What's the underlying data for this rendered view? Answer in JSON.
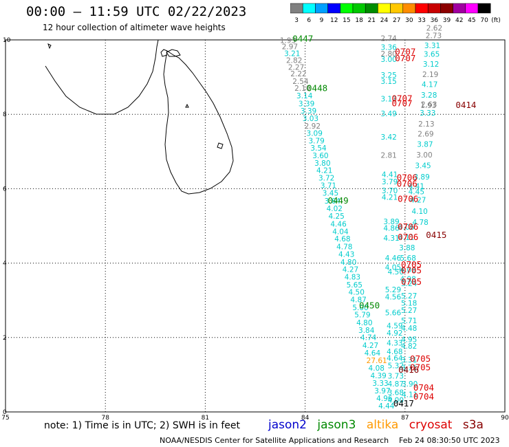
{
  "header": {
    "title": "00:00 – 11:59 UTC 02/22/2023",
    "subtitle": "12 hour collection of altimeter wave heights"
  },
  "color_scale": {
    "unit_label": "(ft)",
    "bins": [
      {
        "label": "3",
        "color": "#808080"
      },
      {
        "label": "6",
        "color": "#00ffff"
      },
      {
        "label": "9",
        "color": "#00a0ff"
      },
      {
        "label": "12",
        "color": "#0000ff"
      },
      {
        "label": "15",
        "color": "#00ff00"
      },
      {
        "label": "18",
        "color": "#00c800"
      },
      {
        "label": "21",
        "color": "#008c00"
      },
      {
        "label": "24",
        "color": "#ffff00"
      },
      {
        "label": "27",
        "color": "#ffc800"
      },
      {
        "label": "30",
        "color": "#ff8c00"
      },
      {
        "label": "33",
        "color": "#ff0000"
      },
      {
        "label": "36",
        "color": "#c80000"
      },
      {
        "label": "39",
        "color": "#8c0000"
      },
      {
        "label": "42",
        "color": "#a000a0"
      },
      {
        "label": "45",
        "color": "#ff00ff"
      },
      {
        "label": "70",
        "color": "#000000"
      }
    ]
  },
  "chart_data": {
    "type": "scatter",
    "x_ticks": [
      "75",
      "78",
      "81",
      "84",
      "87",
      "90"
    ],
    "y_ticks": [
      "0",
      "2",
      "4",
      "6",
      "8",
      "10"
    ],
    "xlim": [
      75,
      90
    ],
    "ylim": [
      0,
      10
    ],
    "grid": true,
    "points": [
      {
        "lon": 83.24,
        "lat": 9.92,
        "t": "1.93",
        "c": "#808080"
      },
      {
        "lon": 83.3,
        "lat": 9.75,
        "t": "2.97",
        "c": "#808080"
      },
      {
        "lon": 83.37,
        "lat": 9.57,
        "t": "3.21",
        "c": "#00cccc"
      },
      {
        "lon": 83.43,
        "lat": 9.38,
        "t": "2.82",
        "c": "#808080"
      },
      {
        "lon": 83.49,
        "lat": 9.2,
        "t": "2.27",
        "c": "#808080"
      },
      {
        "lon": 83.56,
        "lat": 9.02,
        "t": "2.22",
        "c": "#808080"
      },
      {
        "lon": 83.62,
        "lat": 8.82,
        "t": "2.54",
        "c": "#808080"
      },
      {
        "lon": 83.68,
        "lat": 8.63,
        "t": "2.10",
        "c": "#808080"
      },
      {
        "lon": 83.74,
        "lat": 8.43,
        "t": "3.14",
        "c": "#00cccc"
      },
      {
        "lon": 83.8,
        "lat": 8.22,
        "t": "3.39",
        "c": "#00cccc"
      },
      {
        "lon": 83.86,
        "lat": 8.02,
        "t": "3.39",
        "c": "#00cccc"
      },
      {
        "lon": 83.92,
        "lat": 7.82,
        "t": "3.03",
        "c": "#00cccc"
      },
      {
        "lon": 83.98,
        "lat": 7.62,
        "t": "2.92",
        "c": "#808080"
      },
      {
        "lon": 84.04,
        "lat": 7.42,
        "t": "3.09",
        "c": "#00cccc"
      },
      {
        "lon": 84.1,
        "lat": 7.22,
        "t": "3.79",
        "c": "#00cccc"
      },
      {
        "lon": 84.16,
        "lat": 7.02,
        "t": "3.54",
        "c": "#00cccc"
      },
      {
        "lon": 84.22,
        "lat": 6.82,
        "t": "3.60",
        "c": "#00cccc"
      },
      {
        "lon": 84.28,
        "lat": 6.62,
        "t": "3.80",
        "c": "#00cccc"
      },
      {
        "lon": 84.34,
        "lat": 6.42,
        "t": "4.21",
        "c": "#00cccc"
      },
      {
        "lon": 84.4,
        "lat": 6.22,
        "t": "3.72",
        "c": "#00cccc"
      },
      {
        "lon": 84.46,
        "lat": 6.02,
        "t": "3.71",
        "c": "#00cccc"
      },
      {
        "lon": 84.52,
        "lat": 5.81,
        "t": "3.45",
        "c": "#00cccc"
      },
      {
        "lon": 84.58,
        "lat": 5.6,
        "t": "3.64",
        "c": "#00cccc"
      },
      {
        "lon": 84.64,
        "lat": 5.4,
        "t": "4.02",
        "c": "#00cccc"
      },
      {
        "lon": 84.7,
        "lat": 5.19,
        "t": "4.25",
        "c": "#00cccc"
      },
      {
        "lon": 84.76,
        "lat": 4.98,
        "t": "4.46",
        "c": "#00cccc"
      },
      {
        "lon": 84.82,
        "lat": 4.78,
        "t": "4.04",
        "c": "#00cccc"
      },
      {
        "lon": 84.88,
        "lat": 4.58,
        "t": "4.68",
        "c": "#00cccc"
      },
      {
        "lon": 84.94,
        "lat": 4.37,
        "t": "4.78",
        "c": "#00cccc"
      },
      {
        "lon": 85.0,
        "lat": 4.17,
        "t": "4.43",
        "c": "#00cccc"
      },
      {
        "lon": 85.06,
        "lat": 3.96,
        "t": "4.80",
        "c": "#00cccc"
      },
      {
        "lon": 85.12,
        "lat": 3.76,
        "t": "4.27",
        "c": "#00cccc"
      },
      {
        "lon": 85.18,
        "lat": 3.56,
        "t": "4.83",
        "c": "#00cccc"
      },
      {
        "lon": 85.24,
        "lat": 3.35,
        "t": "5.65",
        "c": "#00cccc"
      },
      {
        "lon": 85.3,
        "lat": 3.15,
        "t": "4.50",
        "c": "#00cccc"
      },
      {
        "lon": 85.36,
        "lat": 2.95,
        "t": "4.87",
        "c": "#00cccc"
      },
      {
        "lon": 85.42,
        "lat": 2.74,
        "t": "5.00",
        "c": "#00cccc"
      },
      {
        "lon": 85.48,
        "lat": 2.54,
        "t": "5.79",
        "c": "#00cccc"
      },
      {
        "lon": 85.54,
        "lat": 2.33,
        "t": "4.80",
        "c": "#00cccc"
      },
      {
        "lon": 85.6,
        "lat": 2.13,
        "t": "3.84",
        "c": "#00cccc"
      },
      {
        "lon": 85.66,
        "lat": 1.93,
        "t": "4.74",
        "c": "#00cccc"
      },
      {
        "lon": 85.72,
        "lat": 1.72,
        "t": "4.27",
        "c": "#00cccc"
      },
      {
        "lon": 85.78,
        "lat": 1.52,
        "t": "4.64",
        "c": "#00cccc"
      },
      {
        "lon": 85.84,
        "lat": 1.31,
        "t": "27.61",
        "c": "#ff9900"
      },
      {
        "lon": 85.9,
        "lat": 1.11,
        "t": "4.08",
        "c": "#00cccc"
      },
      {
        "lon": 85.96,
        "lat": 0.91,
        "t": "4.39",
        "c": "#00cccc"
      },
      {
        "lon": 86.02,
        "lat": 0.7,
        "t": "3.33",
        "c": "#00cccc"
      },
      {
        "lon": 86.08,
        "lat": 0.5,
        "t": "3.97",
        "c": "#00cccc"
      },
      {
        "lon": 86.14,
        "lat": 0.3,
        "t": "4.96",
        "c": "#00cccc"
      },
      {
        "lon": 86.2,
        "lat": 0.09,
        "t": "4.44",
        "c": "#00cccc"
      },
      {
        "lon": 86.27,
        "lat": 9.97,
        "t": "2.74",
        "c": "#808080"
      },
      {
        "lon": 86.27,
        "lat": 9.73,
        "t": "3.36",
        "c": "#00cccc"
      },
      {
        "lon": 86.27,
        "lat": 9.56,
        "t": "2.80",
        "c": "#808080"
      },
      {
        "lon": 86.27,
        "lat": 9.41,
        "t": "3.00",
        "c": "#00cccc"
      },
      {
        "lon": 86.27,
        "lat": 8.98,
        "t": "3.25",
        "c": "#00cccc"
      },
      {
        "lon": 86.27,
        "lat": 8.82,
        "t": "3.15",
        "c": "#00cccc"
      },
      {
        "lon": 86.27,
        "lat": 8.35,
        "t": "3.12",
        "c": "#00cccc"
      },
      {
        "lon": 86.27,
        "lat": 7.95,
        "t": "3.49",
        "c": "#00cccc"
      },
      {
        "lon": 86.27,
        "lat": 7.32,
        "t": "3.42",
        "c": "#00cccc"
      },
      {
        "lon": 86.27,
        "lat": 6.83,
        "t": "2.81",
        "c": "#808080"
      },
      {
        "lon": 86.3,
        "lat": 6.31,
        "t": "4.41",
        "c": "#00cccc"
      },
      {
        "lon": 86.3,
        "lat": 6.12,
        "t": "3.79",
        "c": "#00cccc"
      },
      {
        "lon": 86.3,
        "lat": 5.88,
        "t": "3.70",
        "c": "#00cccc"
      },
      {
        "lon": 86.3,
        "lat": 5.7,
        "t": "4.21",
        "c": "#00cccc"
      },
      {
        "lon": 86.35,
        "lat": 5.05,
        "t": "3.89",
        "c": "#00cccc"
      },
      {
        "lon": 86.35,
        "lat": 4.87,
        "t": "4.86",
        "c": "#00cccc"
      },
      {
        "lon": 86.35,
        "lat": 4.6,
        "t": "4.31",
        "c": "#00cccc"
      },
      {
        "lon": 86.4,
        "lat": 4.07,
        "t": "4.46",
        "c": "#00cccc"
      },
      {
        "lon": 86.4,
        "lat": 3.82,
        "t": "4.05",
        "c": "#00cccc"
      },
      {
        "lon": 86.4,
        "lat": 3.22,
        "t": "5.29",
        "c": "#00cccc"
      },
      {
        "lon": 86.4,
        "lat": 3.02,
        "t": "4.56",
        "c": "#00cccc"
      },
      {
        "lon": 86.4,
        "lat": 2.6,
        "t": "5.66",
        "c": "#00cccc"
      },
      {
        "lon": 86.45,
        "lat": 2.25,
        "t": "4.59",
        "c": "#00cccc"
      },
      {
        "lon": 86.45,
        "lat": 2.05,
        "t": "4.92",
        "c": "#00cccc"
      },
      {
        "lon": 86.45,
        "lat": 1.78,
        "t": "4.33",
        "c": "#00cccc"
      },
      {
        "lon": 86.45,
        "lat": 1.55,
        "t": "4.68",
        "c": "#00cccc"
      },
      {
        "lon": 86.45,
        "lat": 1.38,
        "t": "4.64",
        "c": "#00cccc"
      },
      {
        "lon": 86.48,
        "lat": 1.17,
        "t": "5.32",
        "c": "#00cccc"
      },
      {
        "lon": 86.48,
        "lat": 0.9,
        "t": "3.73",
        "c": "#00cccc"
      },
      {
        "lon": 86.48,
        "lat": 0.68,
        "t": "4.87",
        "c": "#00cccc"
      },
      {
        "lon": 86.48,
        "lat": 0.45,
        "t": "3.68",
        "c": "#00cccc"
      },
      {
        "lon": 86.48,
        "lat": 0.25,
        "t": "4.00",
        "c": "#00cccc"
      },
      {
        "lon": 86.48,
        "lat": 3.7,
        "t": "4.50",
        "c": "#00cccc"
      },
      {
        "lon": 86.8,
        "lat": 4.9,
        "t": "4.06",
        "c": "#00cccc"
      },
      {
        "lon": 86.8,
        "lat": 4.62,
        "t": "4.11",
        "c": "#00cccc"
      },
      {
        "lon": 86.82,
        "lat": 4.34,
        "t": "3.88",
        "c": "#00cccc"
      },
      {
        "lon": 86.85,
        "lat": 4.07,
        "t": "5.68",
        "c": "#00cccc"
      },
      {
        "lon": 86.85,
        "lat": 3.75,
        "t": "4.06",
        "c": "#00cccc"
      },
      {
        "lon": 86.85,
        "lat": 3.5,
        "t": "4.98",
        "c": "#00cccc"
      },
      {
        "lon": 86.88,
        "lat": 3.38,
        "t": "5.24",
        "c": "#00cccc"
      },
      {
        "lon": 86.88,
        "lat": 3.05,
        "t": "5.27",
        "c": "#00cccc"
      },
      {
        "lon": 86.88,
        "lat": 2.86,
        "t": "5.18",
        "c": "#00cccc"
      },
      {
        "lon": 86.88,
        "lat": 2.66,
        "t": "5.27",
        "c": "#00cccc"
      },
      {
        "lon": 86.88,
        "lat": 2.38,
        "t": "5.71",
        "c": "#00cccc"
      },
      {
        "lon": 86.88,
        "lat": 2.18,
        "t": "4.48",
        "c": "#00cccc"
      },
      {
        "lon": 86.88,
        "lat": 1.88,
        "t": "4.95",
        "c": "#00cccc"
      },
      {
        "lon": 86.88,
        "lat": 1.7,
        "t": "4.82",
        "c": "#00cccc"
      },
      {
        "lon": 86.88,
        "lat": 1.33,
        "t": "3.31",
        "c": "#00cccc"
      },
      {
        "lon": 86.88,
        "lat": 1.12,
        "t": "3.71",
        "c": "#00cccc"
      },
      {
        "lon": 86.9,
        "lat": 0.68,
        "t": "3.90",
        "c": "#00cccc"
      },
      {
        "lon": 86.9,
        "lat": 0.4,
        "t": "4.11",
        "c": "#00cccc"
      },
      {
        "lon": 87.1,
        "lat": 6.0,
        "t": "4.41",
        "c": "#00cccc"
      },
      {
        "lon": 87.1,
        "lat": 5.85,
        "t": "4.45",
        "c": "#00cccc"
      },
      {
        "lon": 87.15,
        "lat": 5.63,
        "t": "4.27",
        "c": "#00cccc"
      },
      {
        "lon": 87.2,
        "lat": 5.32,
        "t": "4.10",
        "c": "#00cccc"
      },
      {
        "lon": 87.22,
        "lat": 5.03,
        "t": "4.78",
        "c": "#00cccc"
      },
      {
        "lon": 87.26,
        "lat": 6.25,
        "t": "3.89",
        "c": "#00cccc"
      },
      {
        "lon": 87.3,
        "lat": 6.55,
        "t": "3.45",
        "c": "#00cccc"
      },
      {
        "lon": 87.34,
        "lat": 6.84,
        "t": "3.00",
        "c": "#808080"
      },
      {
        "lon": 87.36,
        "lat": 7.13,
        "t": "3.87",
        "c": "#00cccc"
      },
      {
        "lon": 87.38,
        "lat": 7.4,
        "t": "2.69",
        "c": "#808080"
      },
      {
        "lon": 87.4,
        "lat": 7.67,
        "t": "2.13",
        "c": "#808080"
      },
      {
        "lon": 87.44,
        "lat": 7.97,
        "t": "3.33",
        "c": "#00cccc"
      },
      {
        "lon": 87.46,
        "lat": 8.17,
        "t": "1.93",
        "c": "#808080"
      },
      {
        "lon": 87.48,
        "lat": 8.2,
        "t": "2.63",
        "c": "#808080"
      },
      {
        "lon": 87.48,
        "lat": 8.45,
        "t": "3.28",
        "c": "#00cccc"
      },
      {
        "lon": 87.5,
        "lat": 8.73,
        "t": "4.17",
        "c": "#00cccc"
      },
      {
        "lon": 87.52,
        "lat": 9.0,
        "t": "2.19",
        "c": "#808080"
      },
      {
        "lon": 87.54,
        "lat": 9.28,
        "t": "3.12",
        "c": "#00cccc"
      },
      {
        "lon": 87.56,
        "lat": 9.55,
        "t": "3.65",
        "c": "#00cccc"
      },
      {
        "lon": 87.58,
        "lat": 9.78,
        "t": "3.31",
        "c": "#00cccc"
      },
      {
        "lon": 87.62,
        "lat": 10.05,
        "t": "2.73",
        "c": "#808080"
      },
      {
        "lon": 87.64,
        "lat": 10.25,
        "t": "2.62",
        "c": "#808080"
      }
    ],
    "passes": [
      {
        "lon": 83.62,
        "lat": 9.95,
        "t": "0447",
        "c": "#008800"
      },
      {
        "lon": 84.05,
        "lat": 8.62,
        "t": "0448",
        "c": "#008800"
      },
      {
        "lon": 84.68,
        "lat": 5.6,
        "t": "0449",
        "c": "#008800"
      },
      {
        "lon": 85.62,
        "lat": 2.78,
        "t": "0450",
        "c": "#008800"
      },
      {
        "lon": 86.7,
        "lat": 9.6,
        "t": "0707",
        "c": "#dd0000"
      },
      {
        "lon": 86.7,
        "lat": 9.43,
        "t": "0707",
        "c": "#dd0000"
      },
      {
        "lon": 86.6,
        "lat": 8.35,
        "t": "0707",
        "c": "#dd0000"
      },
      {
        "lon": 86.6,
        "lat": 8.22,
        "t": "0707",
        "c": "#dd0000"
      },
      {
        "lon": 86.75,
        "lat": 6.22,
        "t": "0706",
        "c": "#dd0000"
      },
      {
        "lon": 86.75,
        "lat": 6.05,
        "t": "0706",
        "c": "#dd0000"
      },
      {
        "lon": 86.78,
        "lat": 5.65,
        "t": "0706",
        "c": "#dd0000"
      },
      {
        "lon": 86.78,
        "lat": 4.9,
        "t": "0706",
        "c": "#dd0000"
      },
      {
        "lon": 86.78,
        "lat": 4.62,
        "t": "0706",
        "c": "#dd0000"
      },
      {
        "lon": 86.88,
        "lat": 3.88,
        "t": "0705",
        "c": "#dd0000"
      },
      {
        "lon": 86.88,
        "lat": 3.72,
        "t": "0705",
        "c": "#dd0000"
      },
      {
        "lon": 86.88,
        "lat": 3.42,
        "t": "0705",
        "c": "#dd0000"
      },
      {
        "lon": 87.15,
        "lat": 1.35,
        "t": "0705",
        "c": "#dd0000"
      },
      {
        "lon": 87.15,
        "lat": 1.12,
        "t": "0705",
        "c": "#dd0000"
      },
      {
        "lon": 87.25,
        "lat": 0.57,
        "t": "0704",
        "c": "#dd0000"
      },
      {
        "lon": 87.25,
        "lat": 0.33,
        "t": "0704",
        "c": "#dd0000"
      },
      {
        "lon": 88.52,
        "lat": 8.17,
        "t": "0414",
        "c": "#880000"
      },
      {
        "lon": 87.63,
        "lat": 4.68,
        "t": "0415",
        "c": "#880000"
      },
      {
        "lon": 86.8,
        "lat": 1.05,
        "t": "0416",
        "c": "#880000"
      },
      {
        "lon": 86.65,
        "lat": 0.15,
        "t": "0417",
        "c": "#000000"
      }
    ]
  },
  "footer": {
    "note": "note: 1) Time is in UTC; 2) SWH is in feet",
    "legend": [
      {
        "label": "jason2",
        "color": "#0000cc"
      },
      {
        "label": "jason3",
        "color": "#008800"
      },
      {
        "label": "altika",
        "color": "#ff9900"
      },
      {
        "label": "cryosat",
        "color": "#dd0000"
      },
      {
        "label": "s3a",
        "color": "#880000"
      }
    ],
    "credit": "NOAA/NESDIS Center for Satellite Applications and Research",
    "timestamp": "Feb 24 08:30:50 UTC 2023"
  }
}
